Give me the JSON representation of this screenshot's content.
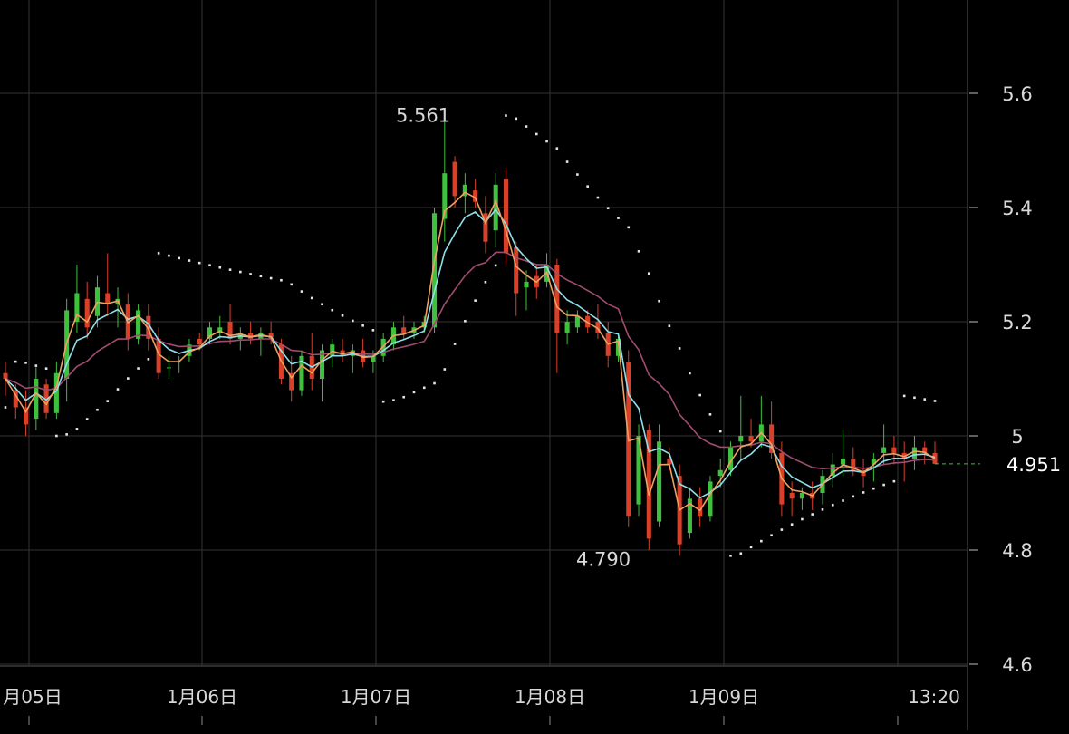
{
  "chart_data": {
    "type": "candlestick",
    "y_ticks": [
      "5.6",
      "5.4",
      "5.2",
      "5",
      "4.8",
      "4.6"
    ],
    "y_tick_values": [
      5.6,
      5.4,
      5.2,
      5.0,
      4.8,
      4.6
    ],
    "ylim": [
      4.6,
      5.6
    ],
    "x_labels": [
      "月05日",
      "1月06日",
      "1月07日",
      "1月08日",
      "1月09日",
      "13:20"
    ],
    "last_price": 4.951,
    "annotations": {
      "high_label": "5.561",
      "high_value": 5.561,
      "low_label": "4.790",
      "low_value": 4.79
    },
    "colors": {
      "up": "#3ec23e",
      "down": "#d8402a",
      "ma_fast": "#f0a060",
      "ma_mid": "#8fe0ea",
      "ma_slow": "#a04c70",
      "sar": "#e6e6e6",
      "grid": "#333333",
      "axis_text": "#d8d8d8"
    },
    "candles": [
      [
        5.11,
        5.13,
        5.07,
        5.1
      ],
      [
        5.08,
        5.09,
        5.03,
        5.05
      ],
      [
        5.05,
        5.08,
        5.0,
        5.02
      ],
      [
        5.03,
        5.12,
        5.01,
        5.1
      ],
      [
        5.09,
        5.1,
        5.03,
        5.04
      ],
      [
        5.04,
        5.13,
        5.03,
        5.11
      ],
      [
        5.1,
        5.24,
        5.06,
        5.22
      ],
      [
        5.2,
        5.3,
        5.18,
        5.25
      ],
      [
        5.24,
        5.27,
        5.17,
        5.19
      ],
      [
        5.21,
        5.28,
        5.19,
        5.26
      ],
      [
        5.25,
        5.32,
        5.21,
        5.23
      ],
      [
        5.23,
        5.26,
        5.19,
        5.24
      ],
      [
        5.23,
        5.25,
        5.15,
        5.17
      ],
      [
        5.17,
        5.23,
        5.16,
        5.22
      ],
      [
        5.21,
        5.23,
        5.15,
        5.17
      ],
      [
        5.17,
        5.19,
        5.1,
        5.11
      ],
      [
        5.12,
        5.14,
        5.1,
        5.12
      ],
      [
        5.13,
        5.14,
        5.11,
        5.13
      ],
      [
        5.14,
        5.17,
        5.13,
        5.16
      ],
      [
        5.17,
        5.18,
        5.15,
        5.16
      ],
      [
        5.17,
        5.2,
        5.16,
        5.19
      ],
      [
        5.18,
        5.21,
        5.17,
        5.19
      ],
      [
        5.2,
        5.23,
        5.16,
        5.17
      ],
      [
        5.17,
        5.19,
        5.15,
        5.18
      ],
      [
        5.18,
        5.2,
        5.16,
        5.17
      ],
      [
        5.17,
        5.19,
        5.14,
        5.18
      ],
      [
        5.18,
        5.2,
        5.16,
        5.17
      ],
      [
        5.16,
        5.17,
        5.09,
        5.1
      ],
      [
        5.11,
        5.14,
        5.06,
        5.08
      ],
      [
        5.08,
        5.15,
        5.07,
        5.14
      ],
      [
        5.14,
        5.18,
        5.08,
        5.1
      ],
      [
        5.1,
        5.16,
        5.06,
        5.15
      ],
      [
        5.14,
        5.17,
        5.12,
        5.16
      ],
      [
        5.15,
        5.17,
        5.13,
        5.14
      ],
      [
        5.14,
        5.16,
        5.11,
        5.15
      ],
      [
        5.15,
        5.17,
        5.12,
        5.13
      ],
      [
        5.13,
        5.15,
        5.11,
        5.14
      ],
      [
        5.14,
        5.18,
        5.13,
        5.17
      ],
      [
        5.16,
        5.2,
        5.15,
        5.19
      ],
      [
        5.19,
        5.21,
        5.17,
        5.18
      ],
      [
        5.18,
        5.2,
        5.17,
        5.19
      ],
      [
        5.19,
        5.21,
        5.18,
        5.2
      ],
      [
        5.19,
        5.4,
        5.18,
        5.39
      ],
      [
        5.38,
        5.561,
        5.34,
        5.46
      ],
      [
        5.48,
        5.49,
        5.4,
        5.42
      ],
      [
        5.42,
        5.46,
        5.39,
        5.44
      ],
      [
        5.43,
        5.45,
        5.4,
        5.41
      ],
      [
        5.39,
        5.42,
        5.32,
        5.34
      ],
      [
        5.36,
        5.46,
        5.33,
        5.44
      ],
      [
        5.45,
        5.47,
        5.3,
        5.32
      ],
      [
        5.33,
        5.34,
        5.21,
        5.25
      ],
      [
        5.26,
        5.29,
        5.22,
        5.27
      ],
      [
        5.28,
        5.3,
        5.24,
        5.26
      ],
      [
        5.27,
        5.32,
        5.26,
        5.3
      ],
      [
        5.3,
        5.31,
        5.11,
        5.18
      ],
      [
        5.18,
        5.22,
        5.16,
        5.2
      ],
      [
        5.19,
        5.22,
        5.18,
        5.21
      ],
      [
        5.21,
        5.22,
        5.18,
        5.19
      ],
      [
        5.2,
        5.23,
        5.17,
        5.18
      ],
      [
        5.18,
        5.2,
        5.12,
        5.14
      ],
      [
        5.14,
        5.18,
        5.13,
        5.17
      ],
      [
        5.13,
        5.15,
        4.84,
        4.86
      ],
      [
        4.88,
        5.02,
        4.86,
        5.0
      ],
      [
        5.01,
        5.02,
        4.8,
        4.82
      ],
      [
        4.85,
        5.02,
        4.84,
        4.99
      ],
      [
        4.96,
        4.98,
        4.94,
        4.95
      ],
      [
        4.93,
        4.95,
        4.79,
        4.81
      ],
      [
        4.83,
        4.91,
        4.82,
        4.89
      ],
      [
        4.89,
        4.91,
        4.84,
        4.86
      ],
      [
        4.86,
        4.93,
        4.85,
        4.92
      ],
      [
        4.93,
        4.96,
        4.91,
        4.94
      ],
      [
        4.94,
        4.99,
        4.93,
        4.98
      ],
      [
        4.99,
        5.07,
        4.96,
        5.0
      ],
      [
        5.0,
        5.03,
        4.98,
        4.99
      ],
      [
        4.99,
        5.07,
        4.98,
        5.02
      ],
      [
        5.02,
        5.06,
        4.96,
        4.97
      ],
      [
        4.97,
        4.99,
        4.86,
        4.88
      ],
      [
        4.9,
        4.92,
        4.86,
        4.89
      ],
      [
        4.89,
        4.91,
        4.87,
        4.9
      ],
      [
        4.9,
        4.92,
        4.87,
        4.89
      ],
      [
        4.9,
        4.94,
        4.88,
        4.93
      ],
      [
        4.93,
        4.97,
        4.91,
        4.95
      ],
      [
        4.95,
        5.01,
        4.93,
        4.96
      ],
      [
        4.96,
        4.98,
        4.93,
        4.94
      ],
      [
        4.94,
        4.96,
        4.91,
        4.93
      ],
      [
        4.95,
        4.97,
        4.92,
        4.96
      ],
      [
        4.97,
        5.02,
        4.95,
        4.98
      ],
      [
        4.98,
        5.0,
        4.95,
        4.97
      ],
      [
        4.97,
        4.99,
        4.92,
        4.96
      ],
      [
        4.96,
        5.0,
        4.94,
        4.98
      ],
      [
        4.98,
        4.99,
        4.95,
        4.97
      ],
      [
        4.97,
        4.99,
        4.95,
        4.951
      ]
    ]
  }
}
